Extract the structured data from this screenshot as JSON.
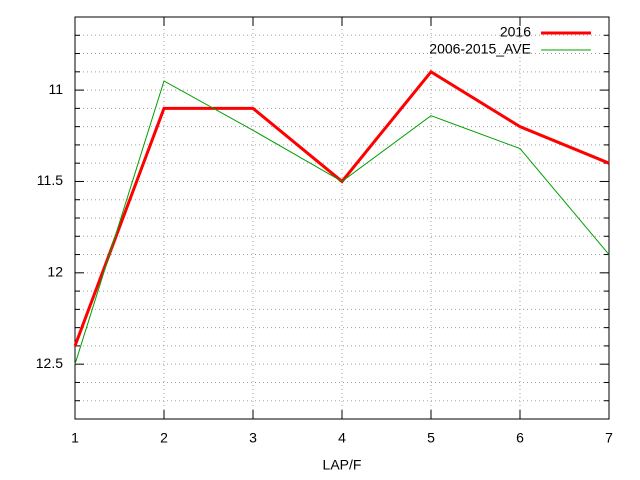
{
  "chart_data": {
    "type": "line",
    "x_label": "LAP/F",
    "x": [
      1,
      2,
      3,
      4,
      5,
      6,
      7
    ],
    "series": [
      {
        "name": "2016",
        "color": "#ff0000",
        "width": 3,
        "values": [
          12.4,
          11.1,
          11.1,
          11.5,
          10.9,
          11.2,
          11.4
        ]
      },
      {
        "name": "2006-2015_AVE",
        "color": "#00a000",
        "width": 1,
        "values": [
          12.5,
          10.95,
          11.22,
          11.5,
          11.14,
          11.32,
          11.9
        ]
      }
    ],
    "xlim": [
      1,
      7
    ],
    "xticks": [
      1,
      2,
      3,
      4,
      5,
      6,
      7
    ],
    "ylim": [
      12.8,
      10.6
    ],
    "yticks": [
      11,
      11.5,
      12,
      12.5
    ],
    "y_minor_ticks": [
      10.6,
      10.7,
      10.8,
      10.9,
      11.1,
      11.2,
      11.3,
      11.4,
      11.6,
      11.7,
      11.8,
      11.9,
      12.1,
      12.2,
      12.3,
      12.4,
      12.6,
      12.7
    ],
    "grid": true,
    "legend": "top-right"
  }
}
